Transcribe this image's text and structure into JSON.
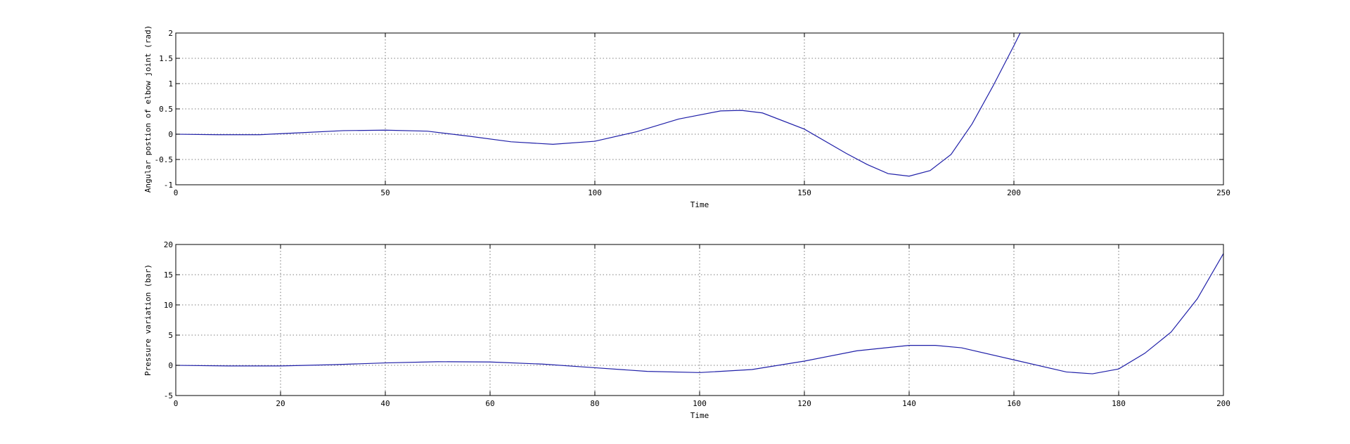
{
  "chart_data": [
    {
      "type": "line",
      "title": "",
      "xlabel": "Time",
      "ylabel": "Angular postion of elbow joint (rad)",
      "xlim": [
        0,
        250
      ],
      "ylim": [
        -1,
        2
      ],
      "xticks": [
        0,
        50,
        100,
        150,
        200,
        250
      ],
      "yticks": [
        -1,
        -0.5,
        0,
        0.5,
        1,
        1.5,
        2
      ],
      "xtick_labels": [
        "0",
        "50",
        "100",
        "150",
        "200",
        "250"
      ],
      "ytick_labels": [
        "-1",
        "-0.5",
        "0",
        "0.5",
        "1",
        "1.5",
        "2"
      ],
      "grid": true,
      "series": [
        {
          "color": "#1f1fa8",
          "x": [
            0,
            10,
            20,
            30,
            40,
            50,
            60,
            70,
            80,
            90,
            100,
            110,
            120,
            130,
            135,
            140,
            150,
            160,
            165,
            170,
            175,
            180,
            185,
            190,
            195,
            200,
            201.5
          ],
          "y": [
            0,
            -0.01,
            -0.01,
            0.03,
            0.07,
            0.08,
            0.06,
            -0.04,
            -0.15,
            -0.2,
            -0.14,
            0.05,
            0.3,
            0.46,
            0.47,
            0.42,
            0.1,
            -0.38,
            -0.6,
            -0.78,
            -0.83,
            -0.72,
            -0.4,
            0.2,
            0.95,
            1.75,
            2.0
          ]
        }
      ]
    },
    {
      "type": "line",
      "title": "",
      "xlabel": "Time",
      "ylabel": "Pressure variation (bar)",
      "xlim": [
        0,
        200
      ],
      "ylim": [
        -5,
        20
      ],
      "xticks": [
        0,
        20,
        40,
        60,
        80,
        100,
        120,
        140,
        160,
        180,
        200
      ],
      "yticks": [
        -5,
        0,
        5,
        10,
        15,
        20
      ],
      "xtick_labels": [
        "0",
        "20",
        "40",
        "60",
        "80",
        "100",
        "120",
        "140",
        "160",
        "180",
        "200"
      ],
      "ytick_labels": [
        "-5",
        "0",
        "5",
        "10",
        "15",
        "20"
      ],
      "grid": true,
      "series": [
        {
          "color": "#1f1fa8",
          "x": [
            0,
            10,
            20,
            30,
            40,
            50,
            60,
            70,
            80,
            90,
            100,
            110,
            120,
            130,
            140,
            145,
            150,
            160,
            170,
            175,
            180,
            185,
            190,
            195,
            200
          ],
          "y": [
            0,
            -0.1,
            -0.1,
            0.1,
            0.4,
            0.6,
            0.55,
            0.2,
            -0.4,
            -1.0,
            -1.2,
            -0.7,
            0.7,
            2.4,
            3.3,
            3.3,
            2.9,
            0.9,
            -1.1,
            -1.4,
            -0.6,
            2.0,
            5.5,
            11.0,
            18.5
          ]
        }
      ]
    }
  ]
}
